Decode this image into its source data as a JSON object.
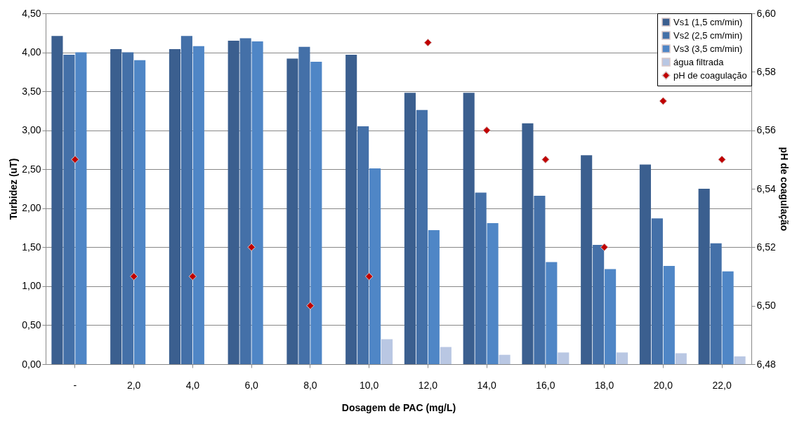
{
  "chart_data": {
    "type": "bar",
    "xlabel": "Dosagem de PAC (mg/L)",
    "ylabel": "Turbidez (uT)",
    "y2label": "pH de coagulação",
    "categories": [
      "-",
      "2,0",
      "4,0",
      "6,0",
      "8,0",
      "10,0",
      "12,0",
      "14,0",
      "16,0",
      "18,0",
      "20,0",
      "22,0"
    ],
    "series": [
      {
        "name": "Vs1 (1,5 cm/min)",
        "color": "#3b5f8f",
        "values": [
          4.21,
          4.04,
          4.04,
          4.15,
          3.92,
          3.97,
          3.48,
          3.48,
          3.09,
          2.68,
          2.56,
          2.25
        ]
      },
      {
        "name": "Vs2 (2,5 cm/min)",
        "color": "#4470a8",
        "values": [
          3.97,
          4.0,
          4.21,
          4.18,
          4.07,
          3.05,
          3.26,
          2.2,
          2.16,
          1.53,
          1.87,
          1.55
        ]
      },
      {
        "name": "Vs3 (3,5 cm/min)",
        "color": "#4f86c6",
        "values": [
          4.0,
          3.9,
          4.08,
          4.14,
          3.88,
          2.51,
          1.72,
          1.81,
          1.31,
          1.22,
          1.26,
          1.19
        ]
      },
      {
        "name": "água filtrada",
        "color": "#b9c7e3",
        "values": [
          null,
          null,
          null,
          null,
          null,
          0.32,
          0.22,
          0.12,
          0.15,
          0.15,
          0.14,
          0.1
        ]
      },
      {
        "name": "pH de coagulação",
        "color": "#c00000",
        "type": "scatter",
        "axis": "y2",
        "marker": "diamond",
        "values": [
          6.55,
          6.51,
          6.51,
          6.52,
          6.5,
          6.51,
          6.59,
          6.56,
          6.55,
          6.52,
          6.57,
          6.55
        ]
      }
    ],
    "ylim": [
      0,
      4.5
    ],
    "yticks": [
      {
        "value": 0,
        "label": "0,00"
      },
      {
        "value": 0.5,
        "label": "0,50"
      },
      {
        "value": 1,
        "label": "1,00"
      },
      {
        "value": 1.5,
        "label": "1,50"
      },
      {
        "value": 2,
        "label": "2,00"
      },
      {
        "value": 2.5,
        "label": "2,50"
      },
      {
        "value": 3,
        "label": "3,00"
      },
      {
        "value": 3.5,
        "label": "3,50"
      },
      {
        "value": 4,
        "label": "4,00"
      },
      {
        "value": 4.5,
        "label": "4,50"
      }
    ],
    "y2lim": [
      6.48,
      6.6
    ],
    "y2ticks": [
      {
        "value": 6.48,
        "label": "6,48"
      },
      {
        "value": 6.5,
        "label": "6,50"
      },
      {
        "value": 6.52,
        "label": "6,52"
      },
      {
        "value": 6.54,
        "label": "6,54"
      },
      {
        "value": 6.56,
        "label": "6,56"
      },
      {
        "value": 6.58,
        "label": "6,58"
      },
      {
        "value": 6.6,
        "label": "6,60"
      }
    ],
    "grid": "y",
    "legend": "top right"
  }
}
